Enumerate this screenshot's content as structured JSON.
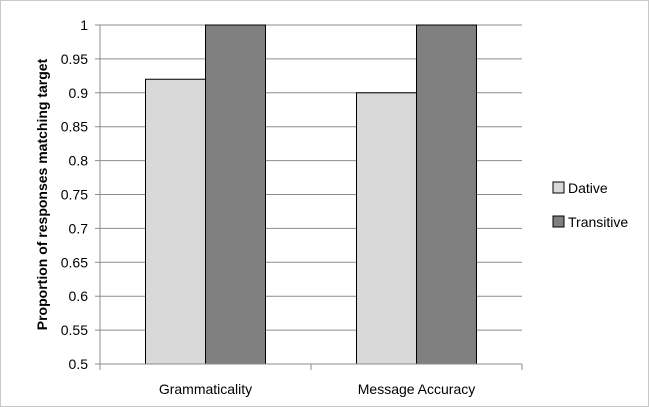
{
  "chart_data": {
    "type": "bar",
    "categories": [
      "Grammaticality",
      "Message Accuracy"
    ],
    "series": [
      {
        "name": "Dative",
        "values": [
          0.92,
          0.9
        ],
        "color": "#d9d9d9"
      },
      {
        "name": "Transitive",
        "values": [
          1.0,
          1.0
        ],
        "color": "#808080"
      }
    ],
    "title": "",
    "xlabel": "",
    "ylabel": "Proportion of responses matching target",
    "ylim": [
      0.5,
      1.0
    ],
    "yticks": [
      "0.5",
      "0.55",
      "0.6",
      "0.65",
      "0.7",
      "0.75",
      "0.8",
      "0.85",
      "0.9",
      "0.95",
      "1"
    ],
    "grid": true,
    "legend_position": "right"
  }
}
